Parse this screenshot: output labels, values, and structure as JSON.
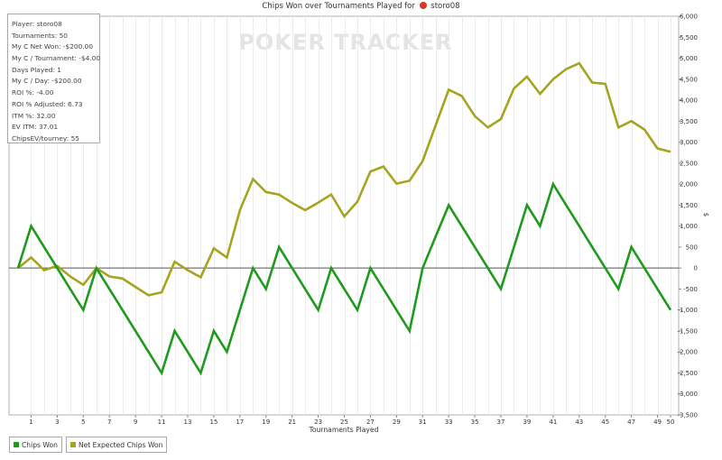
{
  "title": {
    "text": "Chips Won over Tournaments Played for",
    "player": "storo08",
    "player_icon": "pokerstars-icon"
  },
  "watermark": "POKER TRACKER",
  "stats": [
    "Player: storo08",
    "Tournaments: 50",
    "My C Net Won: -$200.00",
    "My C / Tournament: -$4.00",
    "Days Played: 1",
    "My C / Day: -$200.00",
    "ROI %: -4.00",
    "ROI % Adjusted: 6.73",
    "ITM %: 32.00",
    "EV ITM: 37.01",
    "ChipsEV/tourney: 55"
  ],
  "legend": [
    {
      "label": "Chips Won",
      "color": "#1e9a1e"
    },
    {
      "label": "Net Expected Chips Won",
      "color": "#a6a41e"
    }
  ],
  "chart_data": {
    "type": "line",
    "title": "Chips Won over Tournaments Played for storo08",
    "xlabel": "Tournaments Played",
    "ylabel": "$",
    "xlim": [
      0,
      50
    ],
    "ylim": [
      -3500,
      6000
    ],
    "x_ticks": [
      1,
      3,
      5,
      7,
      9,
      11,
      13,
      15,
      17,
      19,
      21,
      23,
      25,
      27,
      29,
      31,
      33,
      35,
      37,
      39,
      41,
      43,
      45,
      47,
      49,
      50
    ],
    "y_ticks": [
      -3500,
      -3000,
      -2500,
      -2000,
      -1500,
      -1000,
      -500,
      0,
      500,
      1000,
      1500,
      2000,
      2500,
      3000,
      3500,
      4000,
      4500,
      5000,
      5500,
      6000
    ],
    "y_tick_labels": [
      "-3,500",
      "-3,000",
      "-2,500",
      "-2,000",
      "-1,500",
      "-1,000",
      "-500",
      "0",
      "500",
      "1,000",
      "1,500",
      "2,000",
      "2,500",
      "3,000",
      "3,500",
      "4,000",
      "4,500",
      "5,000",
      "5,500",
      "6,000"
    ],
    "grid": "vertical",
    "legend_position": "bottom-left",
    "x": [
      0,
      1,
      2,
      3,
      4,
      5,
      6,
      7,
      8,
      9,
      10,
      11,
      12,
      13,
      14,
      15,
      16,
      17,
      18,
      19,
      20,
      21,
      22,
      23,
      24,
      25,
      26,
      27,
      28,
      29,
      30,
      31,
      32,
      33,
      34,
      35,
      36,
      37,
      38,
      39,
      40,
      41,
      42,
      43,
      44,
      45,
      46,
      47,
      48,
      49,
      50
    ],
    "series": [
      {
        "name": "Chips Won",
        "color": "#1e9a1e",
        "values": [
          0,
          1000,
          500,
          0,
          -500,
          -1000,
          0,
          -500,
          -1000,
          -1500,
          -2000,
          -2500,
          -1500,
          -2000,
          -2500,
          -1500,
          -2000,
          -1000,
          0,
          -500,
          500,
          0,
          -500,
          -1000,
          0,
          -500,
          -1000,
          0,
          -500,
          -1000,
          -1500,
          0,
          750,
          1500,
          1000,
          500,
          0,
          -500,
          500,
          1500,
          1000,
          2000,
          1500,
          1000,
          500,
          0,
          -500,
          500,
          0,
          -500,
          -1000
        ]
      },
      {
        "name": "Net Expected Chips Won",
        "color": "#a6a41e",
        "values": [
          0,
          250,
          -50,
          50,
          -200,
          -400,
          0,
          -200,
          -250,
          -450,
          -650,
          -580,
          150,
          -50,
          -220,
          470,
          250,
          1380,
          2120,
          1810,
          1750,
          1550,
          1380,
          1560,
          1750,
          1230,
          1580,
          2300,
          2420,
          2010,
          2080,
          2550,
          3400,
          4250,
          4100,
          3620,
          3350,
          3550,
          4280,
          4560,
          4150,
          4500,
          4740,
          4880,
          4420,
          4390,
          3350,
          3500,
          3300,
          2850,
          2770
        ]
      }
    ]
  }
}
